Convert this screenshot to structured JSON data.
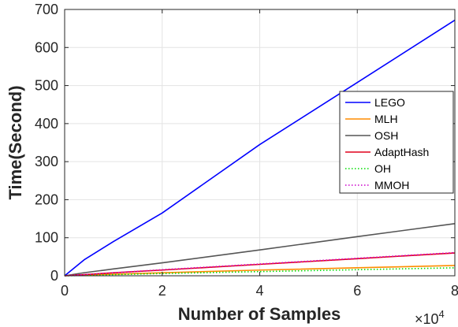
{
  "chart_data": {
    "type": "line",
    "xlabel": "Number of Samples",
    "ylabel": "Time(Second)",
    "xlim": [
      0,
      80000
    ],
    "ylim": [
      0,
      700
    ],
    "x_ticks": [
      0,
      20000,
      40000,
      60000,
      80000
    ],
    "x_tick_labels": [
      "0",
      "2",
      "4",
      "6",
      "8"
    ],
    "x_multiplier_base": "×10",
    "x_multiplier_exp": "4",
    "y_ticks": [
      0,
      100,
      200,
      300,
      400,
      500,
      600,
      700
    ],
    "y_tick_labels": [
      "0",
      "100",
      "200",
      "300",
      "400",
      "500",
      "600",
      "700"
    ],
    "grid": true,
    "legend_position": "right",
    "x": [
      0,
      4000,
      10000,
      20000,
      40000,
      60000,
      80000
    ],
    "series": [
      {
        "name": "LEGO",
        "values": [
          0,
          42,
          90,
          165,
          345,
          508,
          672
        ],
        "color": "#0000ff",
        "style": "solid"
      },
      {
        "name": "MLH",
        "values": [
          0,
          2,
          4,
          8,
          15,
          21,
          27
        ],
        "color": "#ff8c00",
        "style": "solid"
      },
      {
        "name": "OSH",
        "values": [
          0,
          8,
          18,
          34,
          68,
          103,
          137
        ],
        "color": "#555555",
        "style": "solid"
      },
      {
        "name": "AdaptHash",
        "values": [
          0,
          3,
          8,
          15,
          30,
          45,
          60
        ],
        "color": "#e0001b",
        "style": "solid"
      },
      {
        "name": "OH",
        "values": [
          0,
          1,
          3,
          6,
          11,
          16,
          21
        ],
        "color": "#00dd00",
        "style": "dotted"
      },
      {
        "name": "MMOH",
        "values": [
          0,
          3,
          8,
          16,
          31,
          46,
          61
        ],
        "color": "#cc00cc",
        "style": "dotted"
      }
    ]
  }
}
